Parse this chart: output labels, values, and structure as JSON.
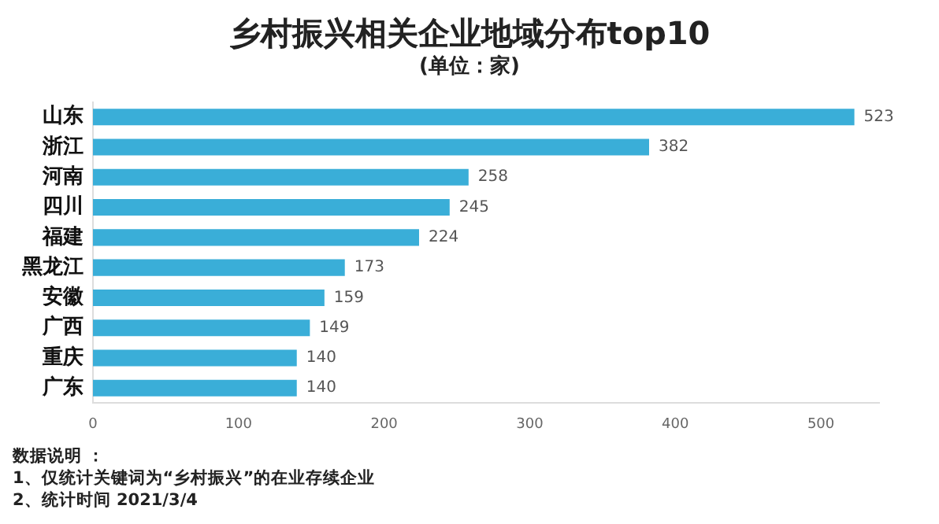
{
  "chart_data": {
    "type": "bar",
    "orientation": "horizontal",
    "title": "乡村振兴相关企业地域分布top10",
    "subtitle": "(单位：家)",
    "categories": [
      "山东",
      "浙江",
      "河南",
      "四川",
      "福建",
      "黑龙江",
      "安徽",
      "广西",
      "重庆",
      "广东"
    ],
    "values": [
      523,
      382,
      258,
      245,
      224,
      173,
      159,
      149,
      140,
      140
    ],
    "color": "#3aaed8",
    "xlim": [
      0,
      540
    ],
    "xticks": [
      0,
      100,
      200,
      300,
      400,
      500
    ],
    "grid": false,
    "legend": false,
    "data_labels": true,
    "annotations": [
      "数据说明 ：",
      "1、仅统计关键词为“乡村振兴”的在业存续企业",
      "2、统计时间 2021/3/4"
    ]
  }
}
